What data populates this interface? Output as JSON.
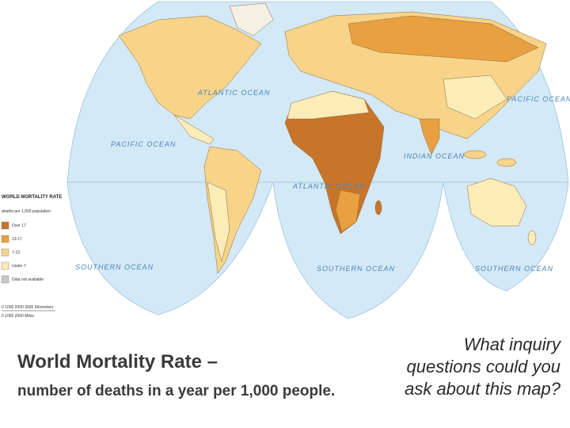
{
  "map": {
    "legend": {
      "title": "WORLD MORTALITY RATE",
      "subtitle": "deaths per 1,000 population",
      "items": [
        "Over 17",
        "13-17",
        "7-13",
        "Under 7",
        "Data not available"
      ]
    },
    "oceans": [
      "PACIFIC OCEAN",
      "ATLANTIC OCEAN",
      "PACIFIC OCEAN",
      "INDIAN OCEAN",
      "ATLANTIC OCEAN",
      "SOUTHERN OCEAN",
      "SOUTHERN OCEAN",
      "SOUTHERN OCEAN"
    ],
    "scale": {
      "km": "0  1000  2000  3000 Kilometers",
      "mi": "0      1000     2000 Miles"
    }
  },
  "slide": {
    "title": "World Mortality Rate –",
    "description": "number of deaths in a year per 1,000 people.",
    "question": [
      "What inquiry",
      "questions could you",
      "ask about this map?"
    ]
  }
}
